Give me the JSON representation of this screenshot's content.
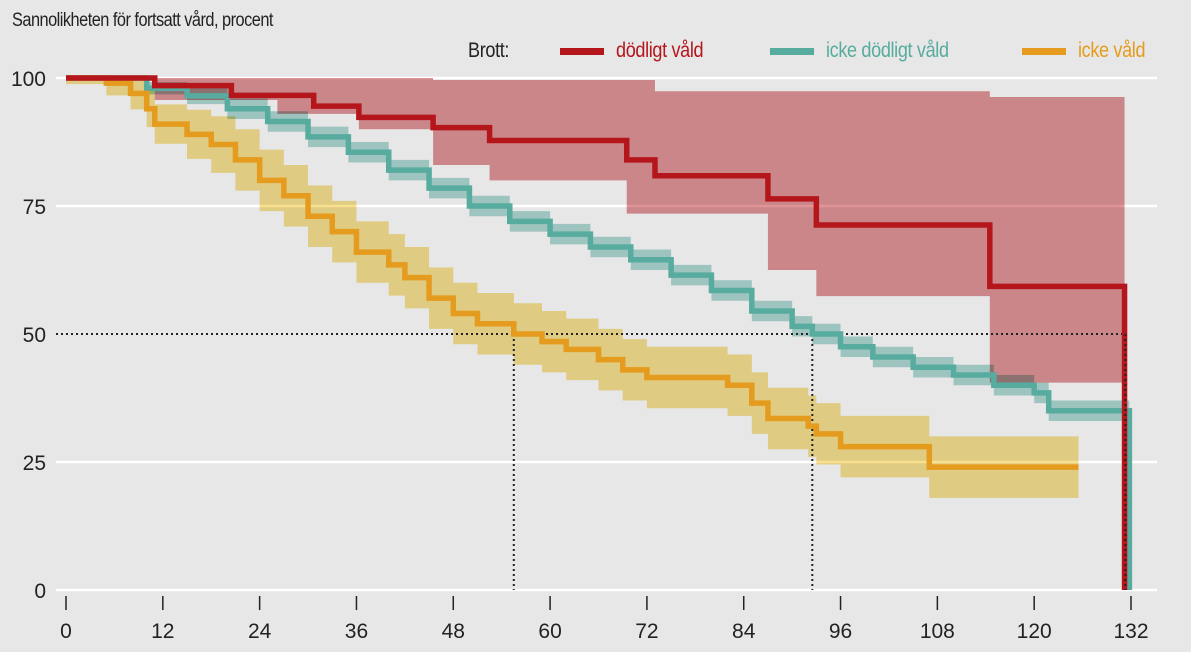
{
  "chart_data": {
    "type": "line",
    "title": "Sannolikheten för fortsatt vård, procent",
    "xlabel": "",
    "ylabel": "Sannolikheten för fortsatt vård, procent",
    "xlim": [
      0,
      132
    ],
    "ylim": [
      0,
      100
    ],
    "x_ticks": [
      0,
      12,
      24,
      36,
      48,
      60,
      72,
      84,
      96,
      108,
      120,
      132
    ],
    "y_ticks": [
      0,
      25,
      50,
      75,
      100
    ],
    "grid": "horizontal",
    "legend_title": "Brott:",
    "legend_position": "top-right",
    "reference_line": {
      "y": 50,
      "style": "dotted",
      "medians": [
        55.5,
        92.5,
        131.3
      ]
    },
    "series": [
      {
        "name": "dödligt våld",
        "color": "#b5161c",
        "band_color": "#de8e91",
        "steps": [
          [
            0,
            100
          ],
          [
            11,
            98.5
          ],
          [
            20.5,
            96.6
          ],
          [
            30.7,
            94.5
          ],
          [
            36.3,
            92.3
          ],
          [
            45.5,
            90.3
          ],
          [
            52.5,
            87.8
          ],
          [
            69.5,
            84
          ],
          [
            73,
            80.9
          ],
          [
            87,
            76.4
          ],
          [
            93,
            71.3
          ],
          [
            114.5,
            59.3
          ],
          [
            131.2,
            0
          ]
        ],
        "upper": [
          [
            11,
            100
          ],
          [
            45.5,
            99.6
          ],
          [
            73,
            97.4
          ],
          [
            114.5,
            96.3
          ],
          [
            131,
            96.3
          ]
        ],
        "lower": [
          [
            11,
            95.7
          ],
          [
            20.5,
            95.7
          ],
          [
            26.2,
            93
          ],
          [
            36.3,
            90
          ],
          [
            45.5,
            83
          ],
          [
            52.5,
            80
          ],
          [
            69.5,
            73.5
          ],
          [
            87,
            62.5
          ],
          [
            93,
            57.4
          ],
          [
            114.5,
            40.5
          ],
          [
            131,
            40.5
          ]
        ]
      },
      {
        "name": "icke dödligt våld",
        "color": "#57ac9f",
        "band_color": "#afd9d3",
        "steps": [
          [
            0,
            100
          ],
          [
            10,
            98
          ],
          [
            15,
            96.5
          ],
          [
            20,
            94
          ],
          [
            25,
            91.5
          ],
          [
            30,
            88.5
          ],
          [
            35,
            85.5
          ],
          [
            40,
            82
          ],
          [
            45,
            78.5
          ],
          [
            50,
            75
          ],
          [
            55,
            72
          ],
          [
            60,
            69.5
          ],
          [
            65,
            67
          ],
          [
            70,
            64.5
          ],
          [
            75,
            61.5
          ],
          [
            80,
            58.5
          ],
          [
            85,
            54.5
          ],
          [
            90,
            51.5
          ],
          [
            92.5,
            50
          ],
          [
            96,
            47.5
          ],
          [
            100,
            45.5
          ],
          [
            105,
            43.5
          ],
          [
            110,
            42
          ],
          [
            115,
            40
          ],
          [
            120,
            38.5
          ],
          [
            121.8,
            35
          ],
          [
            131.8,
            35
          ],
          [
            131.8,
            0
          ]
        ],
        "band_halfwidth": 2.0
      },
      {
        "name": "icke våld",
        "color": "#e59b1d",
        "band_color": "#f7e08e",
        "steps": [
          [
            0,
            100
          ],
          [
            5,
            99
          ],
          [
            8,
            97
          ],
          [
            10,
            94
          ],
          [
            11,
            91
          ],
          [
            15,
            89
          ],
          [
            18,
            87
          ],
          [
            21,
            84
          ],
          [
            24,
            80
          ],
          [
            27,
            77
          ],
          [
            30,
            73
          ],
          [
            33,
            70
          ],
          [
            36,
            66
          ],
          [
            40,
            63.5
          ],
          [
            42,
            61
          ],
          [
            45,
            57
          ],
          [
            48,
            54
          ],
          [
            51,
            52
          ],
          [
            55.5,
            50
          ],
          [
            59,
            48.5
          ],
          [
            62,
            47
          ],
          [
            66,
            45
          ],
          [
            69,
            43
          ],
          [
            72,
            41.5
          ],
          [
            82,
            40
          ],
          [
            85,
            36.5
          ],
          [
            87,
            33.5
          ],
          [
            92,
            32
          ],
          [
            93,
            30.5
          ],
          [
            96,
            28
          ],
          [
            107,
            24
          ],
          [
            125.5,
            24
          ]
        ],
        "band_halfwidth": 6.0,
        "band_end": 125.5
      }
    ]
  }
}
